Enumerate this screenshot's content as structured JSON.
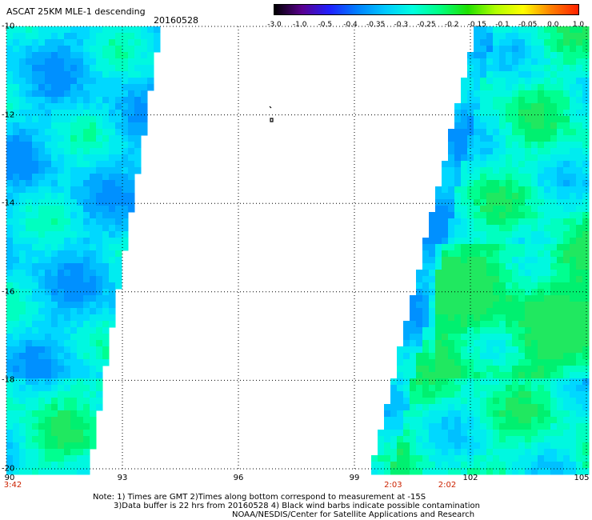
{
  "header": {
    "title": "ASCAT 25KM MLE-1 descending",
    "date": "20160528"
  },
  "colorbar": {
    "labels": [
      "-3.0",
      "-1.0",
      "-0.5",
      "-0.4",
      "-0.35",
      "-0.3",
      "-0.25",
      "-0.2",
      "-0.15",
      "-0.1",
      "-0.05",
      "0.0",
      "1.0"
    ],
    "colors": [
      "#000000",
      "#5a008f",
      "#2020ff",
      "#0080ff",
      "#00c8ff",
      "#00ffe0",
      "#00ff80",
      "#20e000",
      "#b0ff00",
      "#ffff00",
      "#ff8000",
      "#ff2000"
    ]
  },
  "map": {
    "lat_labels": [
      "-10",
      "-12",
      "-14",
      "-16",
      "-18",
      "-20"
    ],
    "lon_labels": [
      "90",
      "93",
      "96",
      "99",
      "102",
      "105"
    ],
    "lat_range": [
      -20,
      -10
    ],
    "lon_range": [
      90,
      105
    ],
    "times": [
      {
        "lon": 90,
        "label": "3:42"
      },
      {
        "lon": 100,
        "label": "2:03"
      },
      {
        "lon": 101.4,
        "label": "2:02"
      }
    ]
  },
  "notes": {
    "line1": "Note: 1) Times are GMT 2)Times along bottom correspond to measurement at -15S",
    "line2": "3)Data buffer is 22 hrs from 20160528 4) Black wind barbs indicate possible contamination",
    "line3": "NOAA/NESDIS/Center for Satellite Applications and Research"
  }
}
